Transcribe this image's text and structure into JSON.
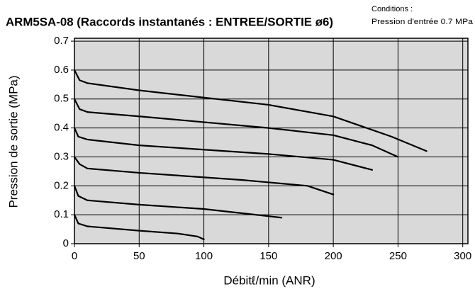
{
  "chart_data": {
    "type": "line",
    "title": "ARM5SA-08 (Raccords instantanés : ENTREE/SORTIE ø6)",
    "conditions_label": "Conditions :",
    "conditions_text": "Pression d'entrée  0.7 MPa",
    "xlabel": "Débitℓ/min (ANR)",
    "ylabel": "Pression de sortie (MPa)",
    "xlim": [
      0,
      304
    ],
    "ylim": [
      0,
      0.71
    ],
    "xticks": [
      0,
      50,
      100,
      150,
      200,
      250,
      300
    ],
    "yticks": [
      0,
      0.1,
      0.2,
      0.3,
      0.4,
      0.5,
      0.6,
      0.7
    ],
    "grid": true,
    "color": "#000000",
    "series": [
      {
        "x": [
          0,
          3,
          10,
          50,
          80,
          95,
          100
        ],
        "values": [
          0.1,
          0.07,
          0.06,
          0.045,
          0.035,
          0.025,
          0.015
        ]
      },
      {
        "x": [
          0,
          3,
          10,
          50,
          100,
          140,
          160
        ],
        "values": [
          0.2,
          0.165,
          0.15,
          0.135,
          0.12,
          0.1,
          0.09
        ]
      },
      {
        "x": [
          0,
          4,
          10,
          50,
          130,
          180,
          200
        ],
        "values": [
          0.3,
          0.275,
          0.26,
          0.245,
          0.22,
          0.2,
          0.17
        ]
      },
      {
        "x": [
          0,
          3,
          10,
          50,
          150,
          200,
          230
        ],
        "values": [
          0.4,
          0.37,
          0.36,
          0.34,
          0.31,
          0.29,
          0.255
        ]
      },
      {
        "x": [
          0,
          4,
          10,
          50,
          150,
          200,
          230,
          250
        ],
        "values": [
          0.5,
          0.465,
          0.455,
          0.44,
          0.4,
          0.375,
          0.34,
          0.3
        ]
      },
      {
        "x": [
          0,
          4,
          10,
          50,
          150,
          200,
          245,
          272
        ],
        "values": [
          0.6,
          0.565,
          0.555,
          0.53,
          0.48,
          0.44,
          0.37,
          0.32
        ]
      }
    ]
  }
}
